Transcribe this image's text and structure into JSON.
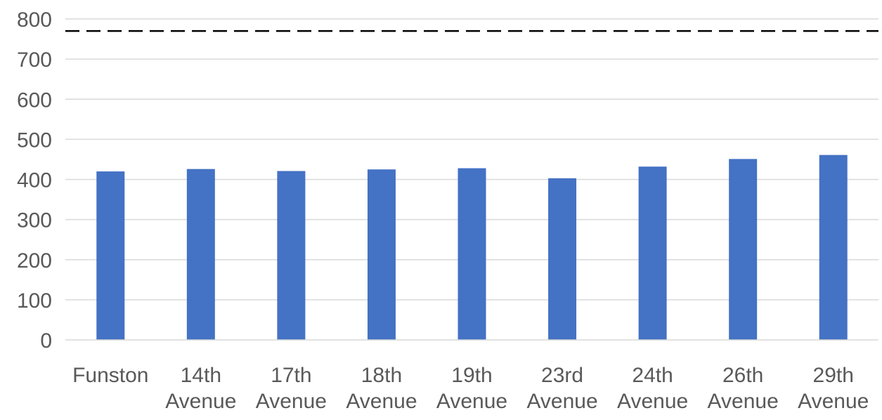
{
  "chart_data": {
    "type": "bar",
    "title": "",
    "xlabel": "",
    "ylabel": "",
    "categories": [
      [
        "Funston"
      ],
      [
        "14th",
        "Avenue"
      ],
      [
        "17th",
        "Avenue"
      ],
      [
        "18th",
        "Avenue"
      ],
      [
        "19th",
        "Avenue"
      ],
      [
        "23rd",
        "Avenue"
      ],
      [
        "24th",
        "Avenue"
      ],
      [
        "26th",
        "Avenue"
      ],
      [
        "29th",
        "Avenue"
      ]
    ],
    "values": [
      420,
      426,
      421,
      425,
      428,
      403,
      432,
      451,
      461
    ],
    "ylim": [
      0,
      800
    ],
    "yticks": [
      0,
      100,
      200,
      300,
      400,
      500,
      600,
      700,
      800
    ],
    "reference_line": {
      "value": 770,
      "style": "dashed",
      "color": "#000000"
    },
    "bar_color": "#4472C4",
    "grid": true,
    "gridline_color": "#D9D9D9",
    "legend": "none"
  }
}
